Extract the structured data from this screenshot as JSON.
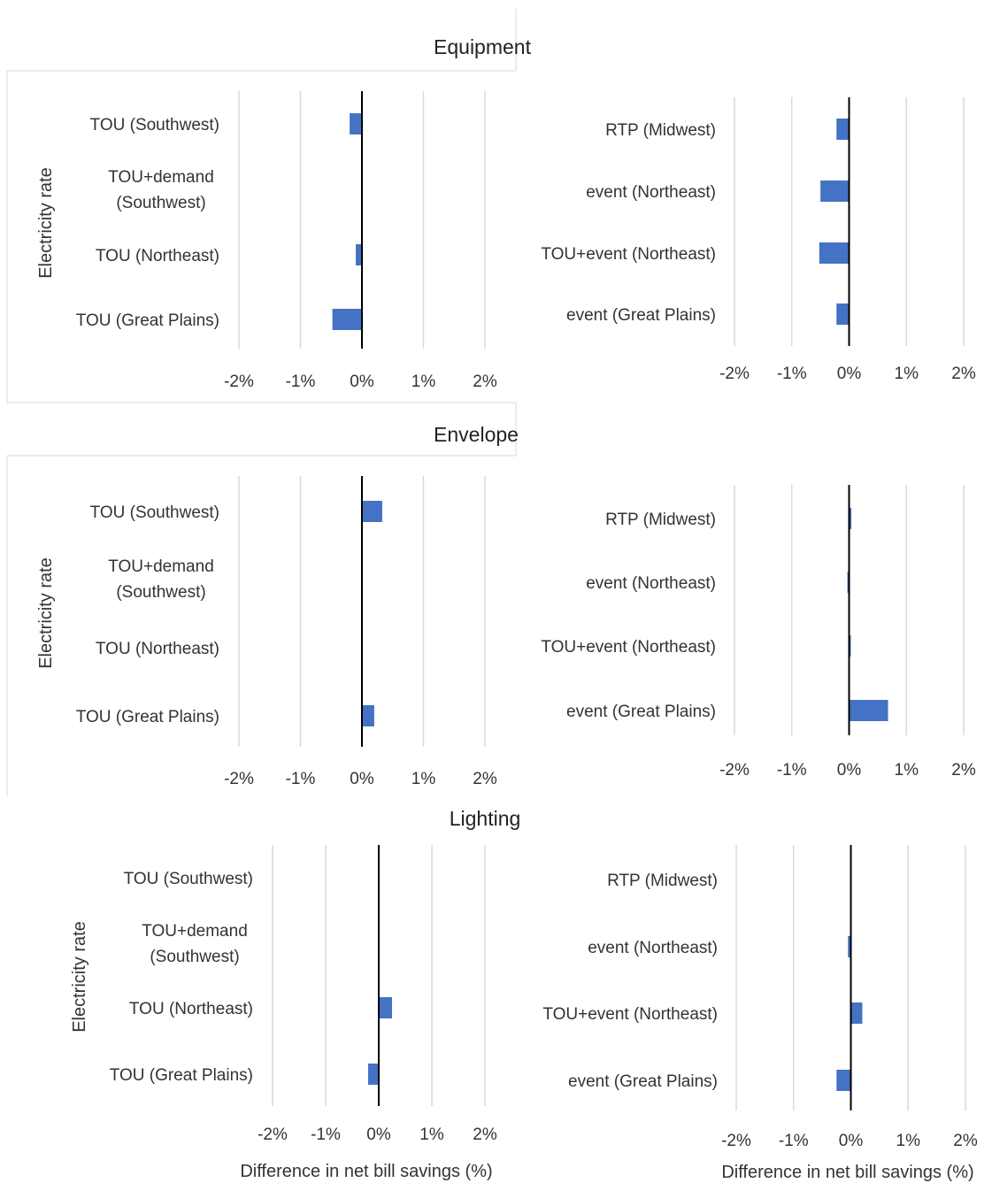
{
  "sections": [
    {
      "title": "Equipment"
    },
    {
      "title": "Envelope"
    },
    {
      "title": "Lighting"
    }
  ],
  "chart_data": [
    {
      "type": "bar",
      "orientation": "horizontal",
      "section": "Equipment",
      "categories": [
        "TOU (Southwest)",
        "TOU+demand (Southwest)",
        "TOU (Northeast)",
        "TOU (Great Plains)"
      ],
      "values": [
        -0.2,
        0,
        -0.1,
        -0.48
      ],
      "xlim": [
        -2,
        2
      ],
      "xticks": [
        "-2%",
        "-1%",
        "0%",
        "1%",
        "2%"
      ],
      "ylabel": "Electricity rate",
      "xlabel": "",
      "color": "#4472c4",
      "grid": true
    },
    {
      "type": "bar",
      "orientation": "horizontal",
      "section": "Equipment",
      "categories": [
        "RTP (Midwest)",
        "event (Northeast)",
        "TOU+event (Northeast)",
        "event (Great Plains)"
      ],
      "values": [
        -0.22,
        -0.5,
        -0.52,
        -0.22
      ],
      "xlim": [
        -2,
        2
      ],
      "xticks": [
        "-2%",
        "-1%",
        "0%",
        "1%",
        "2%"
      ],
      "ylabel": "",
      "xlabel": "",
      "color": "#4472c4",
      "grid": true
    },
    {
      "type": "bar",
      "orientation": "horizontal",
      "section": "Envelope",
      "categories": [
        "TOU (Southwest)",
        "TOU+demand (Southwest)",
        "TOU (Northeast)",
        "TOU (Great Plains)"
      ],
      "values": [
        0.33,
        0,
        0,
        0.2
      ],
      "xlim": [
        -2,
        2
      ],
      "xticks": [
        "-2%",
        "-1%",
        "0%",
        "1%",
        "2%"
      ],
      "ylabel": "Electricity rate",
      "xlabel": "",
      "color": "#4472c4",
      "grid": true
    },
    {
      "type": "bar",
      "orientation": "horizontal",
      "section": "Envelope",
      "categories": [
        "RTP (Midwest)",
        "event (Northeast)",
        "TOU+event (Northeast)",
        "event (Great Plains)"
      ],
      "values": [
        0.04,
        -0.03,
        0.02,
        0.68
      ],
      "xlim": [
        -2,
        2
      ],
      "xticks": [
        "-2%",
        "-1%",
        "0%",
        "1%",
        "2%"
      ],
      "ylabel": "",
      "xlabel": "",
      "color": "#4472c4",
      "grid": true
    },
    {
      "type": "bar",
      "orientation": "horizontal",
      "section": "Lighting",
      "categories": [
        "TOU (Southwest)",
        "TOU+demand (Southwest)",
        "TOU (Northeast)",
        "TOU (Great Plains)"
      ],
      "values": [
        0,
        0,
        0.25,
        -0.2
      ],
      "xlim": [
        -2,
        2
      ],
      "xticks": [
        "-2%",
        "-1%",
        "0%",
        "1%",
        "2%"
      ],
      "ylabel": "Electricity rate",
      "xlabel": "Difference in net bill savings (%)",
      "color": "#4472c4",
      "grid": true
    },
    {
      "type": "bar",
      "orientation": "horizontal",
      "section": "Lighting",
      "categories": [
        "RTP (Midwest)",
        "event (Northeast)",
        "TOU+event (Northeast)",
        "event (Great Plains)"
      ],
      "values": [
        0,
        -0.05,
        0.2,
        -0.25
      ],
      "xlim": [
        -2,
        2
      ],
      "xticks": [
        "-2%",
        "-1%",
        "0%",
        "1%",
        "2%"
      ],
      "ylabel": "",
      "xlabel": "Difference in net bill savings (%)",
      "color": "#4472c4",
      "grid": true
    }
  ]
}
